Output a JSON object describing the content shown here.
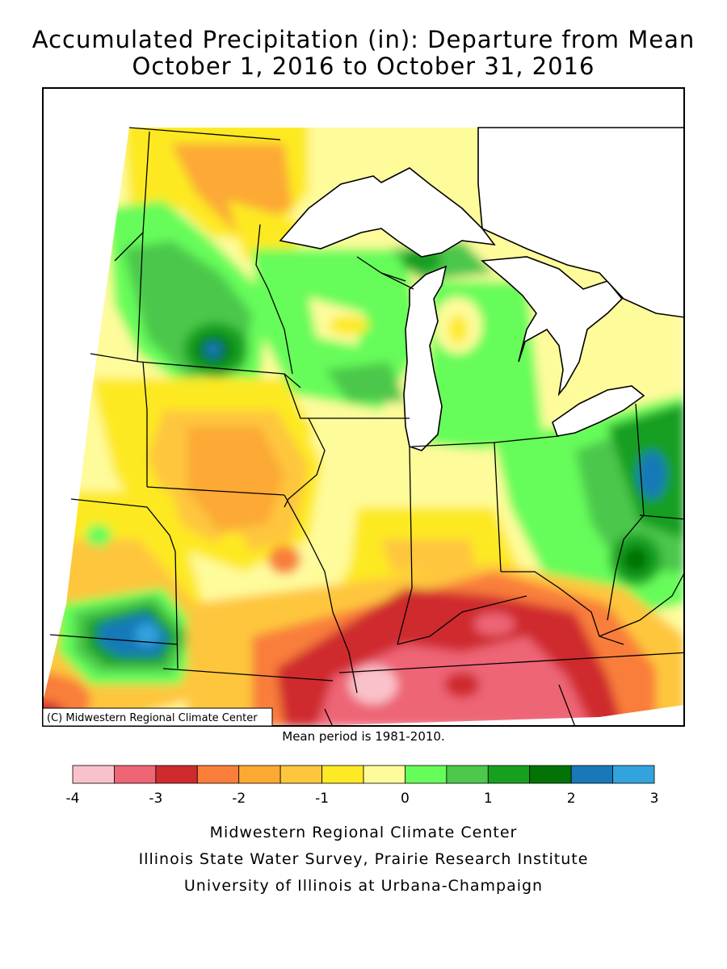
{
  "title_line1": "Accumulated Precipitation (in): Departure from Mean",
  "title_line2": "October 1, 2016 to October 31, 2016",
  "copyright": "(C) Midwestern Regional Climate Center",
  "mean_period": "Mean period is 1981-2010.",
  "legend": {
    "colors": [
      "#f9c2cb",
      "#ee6576",
      "#cf2a2e",
      "#f97e3a",
      "#fca934",
      "#fec63c",
      "#fde924",
      "#fefb9b",
      "#66fc5a",
      "#4cc84c",
      "#179f20",
      "#027304",
      "#1979b8",
      "#32a3dd"
    ],
    "tick_labels": [
      "-4",
      "-3",
      "-2",
      "-1",
      "0",
      "1",
      "2",
      "3"
    ]
  },
  "credits": [
    "Midwestern Regional Climate Center",
    "Illinois State Water Survey, Prairie Research Institute",
    "University of Illinois at Urbana-Champaign"
  ],
  "lake_color": "#ffffff",
  "border_color": "#000000"
}
